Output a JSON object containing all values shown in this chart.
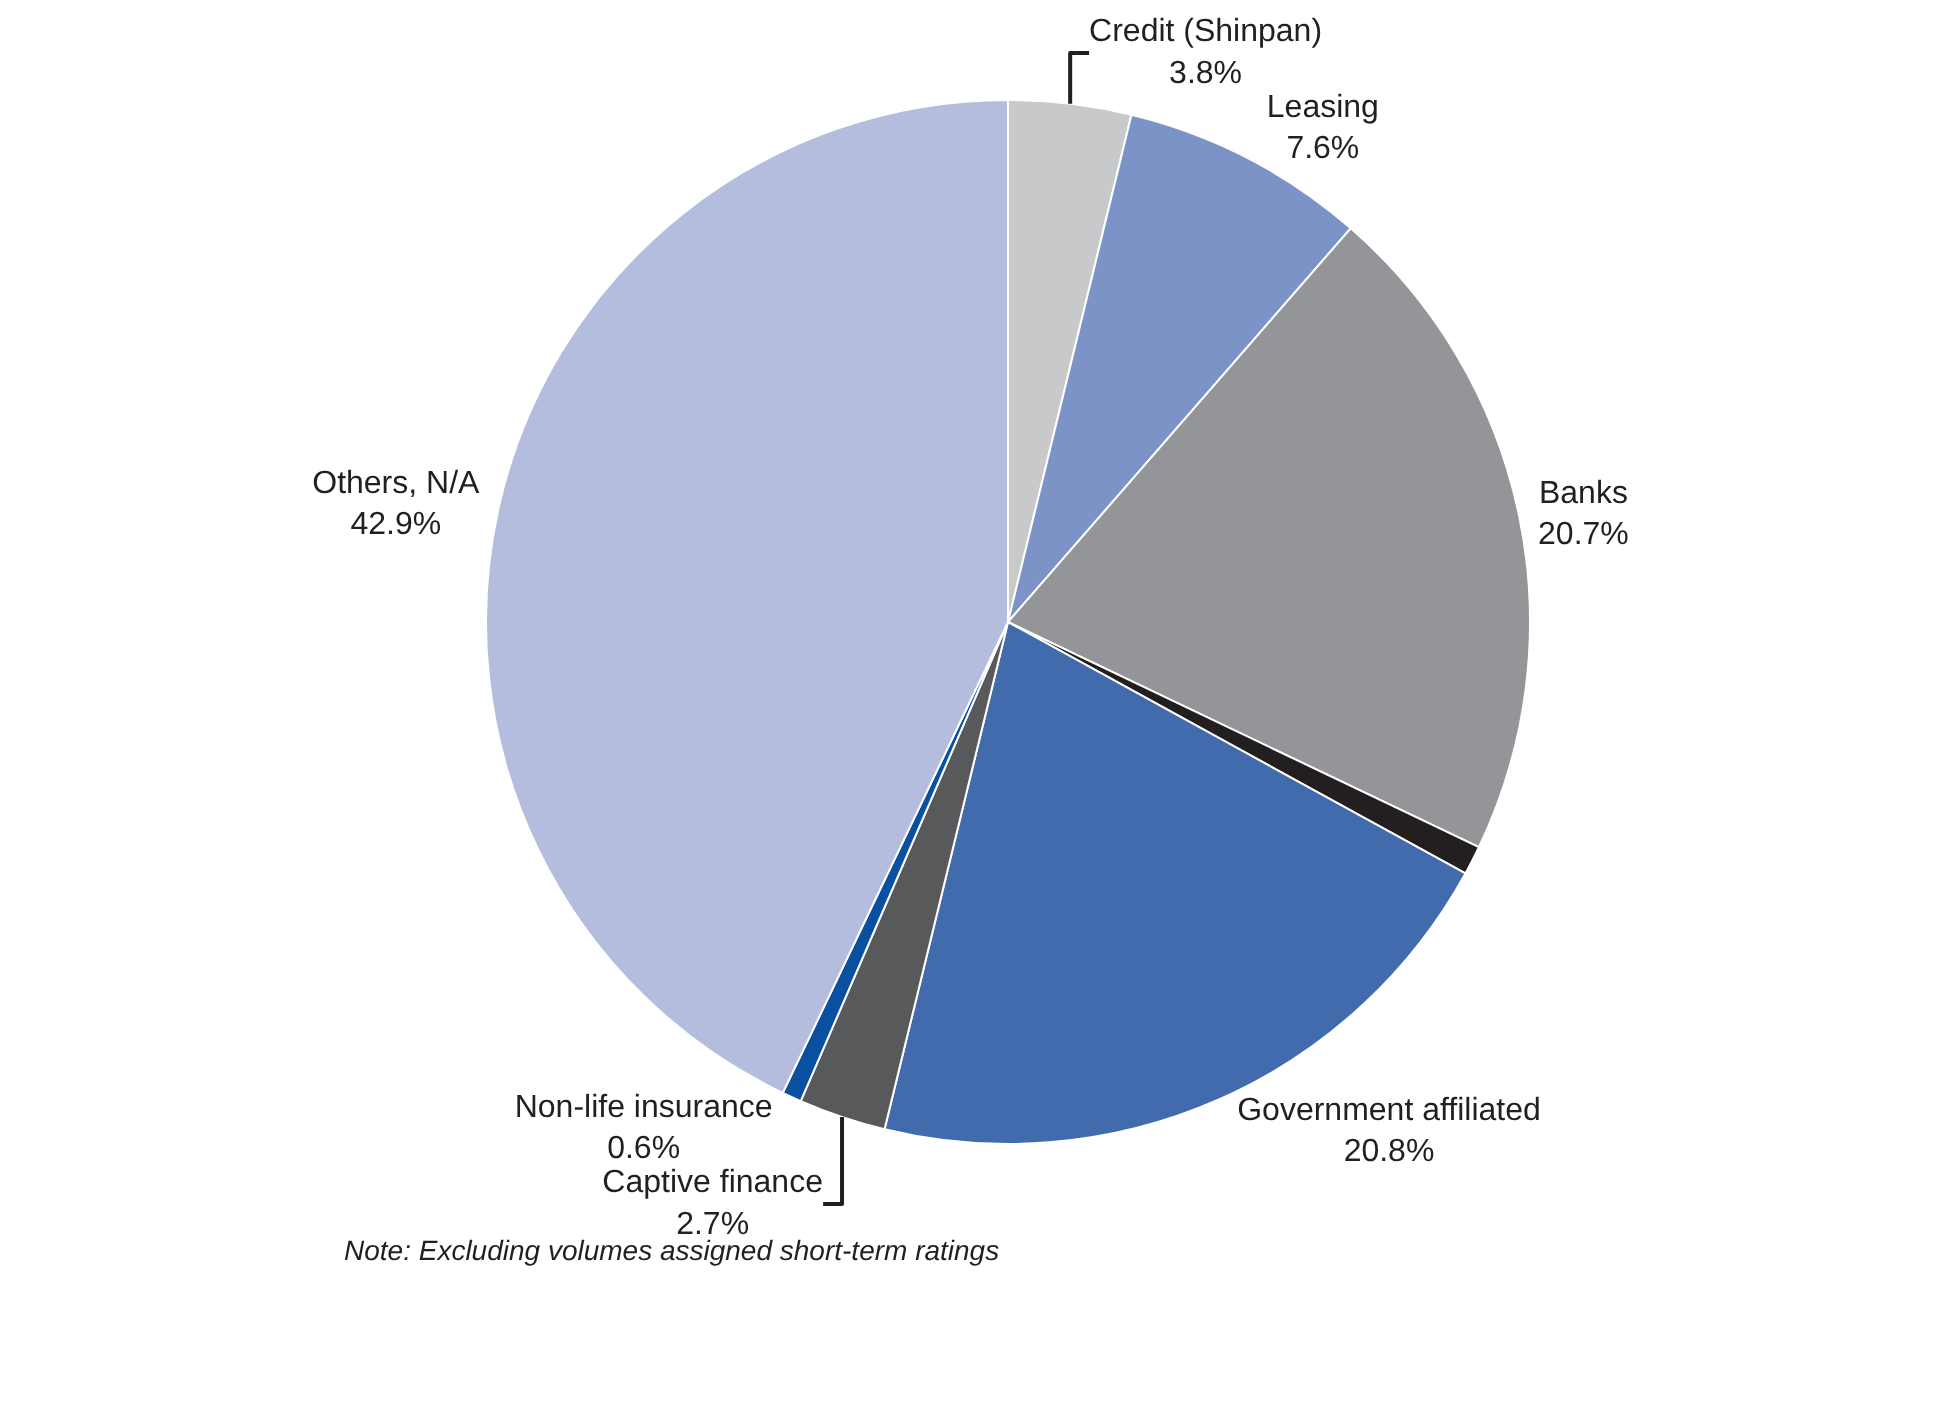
{
  "chart_data": {
    "type": "pie",
    "categories": [
      "Credit (Shinpan)",
      "Leasing",
      "Banks",
      null,
      "Government affiliated",
      "Captive finance",
      "Non-life insurance",
      "Others, N/A"
    ],
    "values": [
      3.8,
      7.6,
      20.7,
      0.9,
      20.8,
      2.7,
      0.6,
      42.9
    ],
    "value_labels": [
      "3.8%",
      "7.6%",
      "20.7%",
      null,
      "20.8%",
      "2.7%",
      "0.6%",
      "42.9%"
    ],
    "colors": [
      "#c8c9cb",
      "#7b93c6",
      "#939598",
      "#231f20",
      "#426bad",
      "#58595b",
      "#0a50a1",
      "#b4bddd"
    ],
    "annotations": [
      "Note: Excluding volumes assigned short-term ratings"
    ],
    "legend": false
  }
}
